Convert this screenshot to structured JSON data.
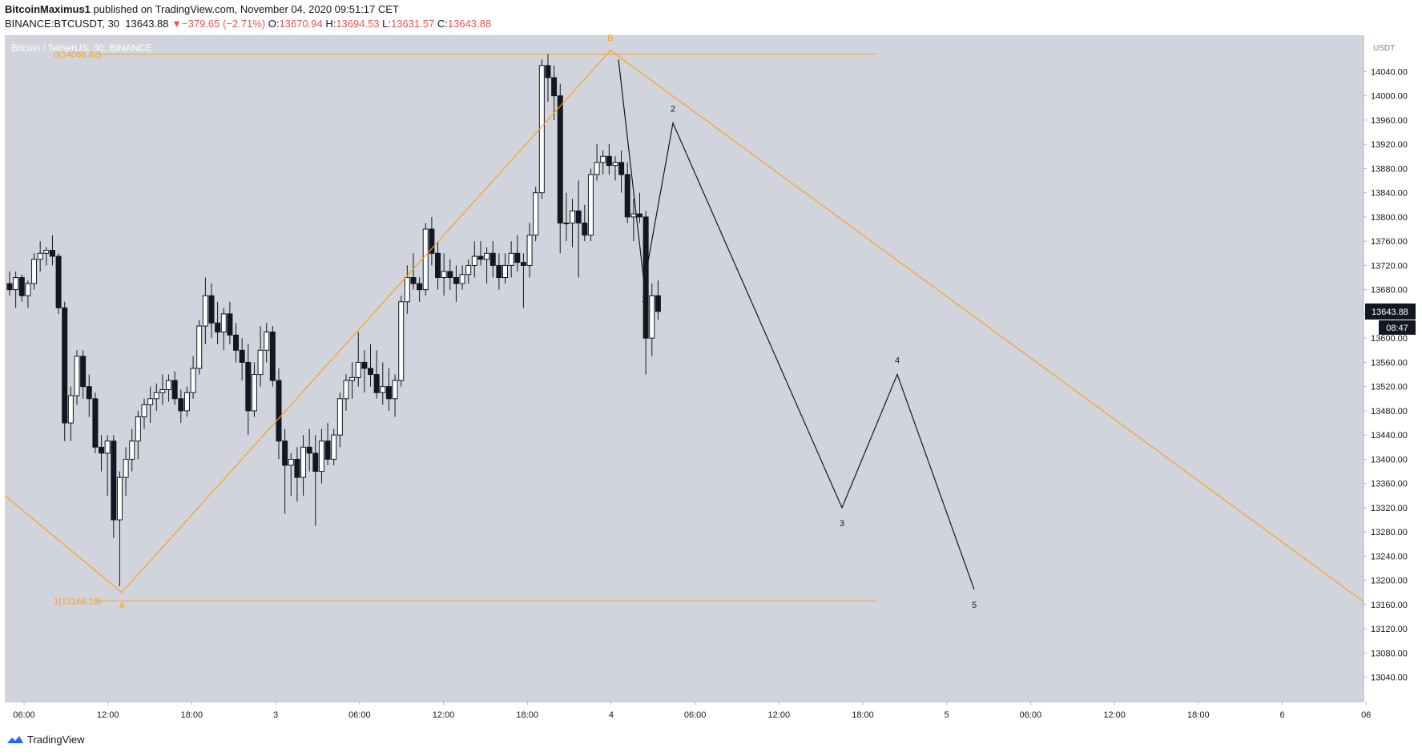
{
  "header": {
    "author": "BitcoinMaximus1",
    "published_text": "published on TradingView.com, November 04, 2020 09:51:17 CET",
    "symbol": "BINANCE:BTCUSDT, 30",
    "last": "13643.88",
    "change": "−379.65 (−2.71%)",
    "o_label": "O:",
    "o": "13670.94",
    "h_label": "H:",
    "h": "13694.53",
    "l_label": "L:",
    "l": "13631.57",
    "c_label": "C:",
    "c": "13643.88"
  },
  "chart_title": "Bitcoin / TetherUS, 30, BINANCE",
  "footer": {
    "brand": "TradingView"
  },
  "colors": {
    "plot_bg": "#d1d4dc",
    "orange": "#f7a21b",
    "down": "#131722",
    "up": "#ffffff",
    "price_tag_bg": "#131722"
  },
  "chart_data": {
    "type": "candlestick",
    "title": "Bitcoin / TetherUS, 30, BINANCE",
    "currency": "USDT",
    "ylim": [
      13000,
      14100
    ],
    "y_ticks": [
      13040,
      13080,
      13120,
      13160,
      13200,
      13240,
      13280,
      13320,
      13360,
      13400,
      13440,
      13480,
      13520,
      13560,
      13600,
      13640,
      13680,
      13720,
      13760,
      13800,
      13840,
      13880,
      13920,
      13960,
      14000,
      14040
    ],
    "x_ticks": [
      "06:00",
      "12:00",
      "18:00",
      "3",
      "06:00",
      "12:00",
      "18:00",
      "4",
      "06:00",
      "12:00",
      "18:00",
      "5",
      "06:00",
      "12:00",
      "18:00",
      "6",
      "06"
    ],
    "last_price": "13643.88",
    "countdown": "08:47",
    "fib_levels": [
      {
        "label": "0(14068.82)",
        "price": 14068.82
      },
      {
        "label": "1(13166.10)",
        "price": 13166.1
      }
    ],
    "abc_labels": {
      "a": "A",
      "b": "B"
    },
    "wave_labels": [
      "1",
      "2",
      "3",
      "4",
      "5"
    ],
    "wave_prices": [
      13690,
      13955,
      13320,
      13540,
      13185
    ],
    "candles": [
      [
        13690,
        13710,
        13670,
        13680
      ],
      [
        13680,
        13710,
        13650,
        13700
      ],
      [
        13700,
        13705,
        13660,
        13670
      ],
      [
        13670,
        13695,
        13650,
        13690
      ],
      [
        13690,
        13740,
        13680,
        13730
      ],
      [
        13730,
        13760,
        13710,
        13740
      ],
      [
        13740,
        13750,
        13720,
        13745
      ],
      [
        13745,
        13770,
        13720,
        13735
      ],
      [
        13735,
        13740,
        13640,
        13650
      ],
      [
        13650,
        13660,
        13430,
        13460
      ],
      [
        13460,
        13520,
        13430,
        13505
      ],
      [
        13505,
        13580,
        13490,
        13570
      ],
      [
        13570,
        13580,
        13500,
        13520
      ],
      [
        13520,
        13540,
        13470,
        13500
      ],
      [
        13500,
        13510,
        13410,
        13420
      ],
      [
        13420,
        13440,
        13380,
        13410
      ],
      [
        13410,
        13440,
        13340,
        13430
      ],
      [
        13430,
        13440,
        13270,
        13300
      ],
      [
        13300,
        13380,
        13190,
        13370
      ],
      [
        13370,
        13420,
        13340,
        13400
      ],
      [
        13400,
        13450,
        13380,
        13430
      ],
      [
        13430,
        13480,
        13400,
        13470
      ],
      [
        13470,
        13500,
        13450,
        13490
      ],
      [
        13490,
        13520,
        13460,
        13500
      ],
      [
        13500,
        13525,
        13480,
        13510
      ],
      [
        13510,
        13540,
        13490,
        13515
      ],
      [
        13515,
        13540,
        13495,
        13530
      ],
      [
        13530,
        13545,
        13490,
        13500
      ],
      [
        13500,
        13515,
        13460,
        13480
      ],
      [
        13480,
        13520,
        13470,
        13510
      ],
      [
        13510,
        13570,
        13500,
        13550
      ],
      [
        13550,
        13630,
        13540,
        13620
      ],
      [
        13620,
        13700,
        13590,
        13670
      ],
      [
        13670,
        13690,
        13600,
        13625
      ],
      [
        13625,
        13660,
        13590,
        13610
      ],
      [
        13610,
        13650,
        13580,
        13640
      ],
      [
        13640,
        13660,
        13590,
        13605
      ],
      [
        13605,
        13625,
        13560,
        13580
      ],
      [
        13580,
        13600,
        13530,
        13560
      ],
      [
        13560,
        13590,
        13440,
        13480
      ],
      [
        13480,
        13560,
        13470,
        13540
      ],
      [
        13540,
        13620,
        13520,
        13580
      ],
      [
        13580,
        13625,
        13560,
        13610
      ],
      [
        13610,
        13620,
        13520,
        13530
      ],
      [
        13530,
        13550,
        13400,
        13430
      ],
      [
        13430,
        13450,
        13310,
        13390
      ],
      [
        13390,
        13410,
        13340,
        13400
      ],
      [
        13400,
        13420,
        13330,
        13370
      ],
      [
        13370,
        13440,
        13340,
        13420
      ],
      [
        13420,
        13450,
        13380,
        13410
      ],
      [
        13410,
        13440,
        13290,
        13380
      ],
      [
        13380,
        13450,
        13360,
        13430
      ],
      [
        13430,
        13460,
        13390,
        13400
      ],
      [
        13400,
        13450,
        13390,
        13440
      ],
      [
        13440,
        13510,
        13420,
        13500
      ],
      [
        13500,
        13540,
        13480,
        13530
      ],
      [
        13530,
        13560,
        13500,
        13535
      ],
      [
        13535,
        13610,
        13520,
        13560
      ],
      [
        13560,
        13580,
        13510,
        13550
      ],
      [
        13550,
        13590,
        13520,
        13540
      ],
      [
        13540,
        13580,
        13500,
        13510
      ],
      [
        13510,
        13560,
        13490,
        13520
      ],
      [
        13520,
        13550,
        13480,
        13500
      ],
      [
        13500,
        13540,
        13470,
        13530
      ],
      [
        13530,
        13670,
        13520,
        13660
      ],
      [
        13660,
        13720,
        13640,
        13700
      ],
      [
        13700,
        13740,
        13680,
        13690
      ],
      [
        13690,
        13700,
        13660,
        13680
      ],
      [
        13680,
        13790,
        13670,
        13780
      ],
      [
        13780,
        13800,
        13720,
        13740
      ],
      [
        13740,
        13760,
        13680,
        13700
      ],
      [
        13700,
        13740,
        13670,
        13710
      ],
      [
        13710,
        13730,
        13680,
        13700
      ],
      [
        13700,
        13720,
        13660,
        13690
      ],
      [
        13690,
        13720,
        13680,
        13705
      ],
      [
        13705,
        13730,
        13690,
        13720
      ],
      [
        13720,
        13760,
        13700,
        13735
      ],
      [
        13735,
        13760,
        13720,
        13730
      ],
      [
        13730,
        13750,
        13690,
        13740
      ],
      [
        13740,
        13760,
        13700,
        13720
      ],
      [
        13720,
        13740,
        13680,
        13700
      ],
      [
        13700,
        13740,
        13690,
        13720
      ],
      [
        13720,
        13760,
        13700,
        13740
      ],
      [
        13740,
        13770,
        13710,
        13725
      ],
      [
        13725,
        13740,
        13650,
        13720
      ],
      [
        13720,
        13790,
        13700,
        13770
      ],
      [
        13770,
        13850,
        13760,
        13840
      ],
      [
        13840,
        14060,
        13830,
        14050
      ],
      [
        14050,
        14070,
        13990,
        14030
      ],
      [
        14030,
        14050,
        13960,
        14000
      ],
      [
        14000,
        14020,
        13740,
        13790
      ],
      [
        13790,
        13840,
        13760,
        13790
      ],
      [
        13790,
        13830,
        13750,
        13810
      ],
      [
        13810,
        13860,
        13700,
        13790
      ],
      [
        13790,
        13820,
        13760,
        13770
      ],
      [
        13770,
        13880,
        13760,
        13870
      ],
      [
        13870,
        13920,
        13860,
        13890
      ],
      [
        13890,
        13910,
        13870,
        13900
      ],
      [
        13900,
        13920,
        13870,
        13885
      ],
      [
        13885,
        13900,
        13860,
        13890
      ],
      [
        13890,
        13910,
        13840,
        13870
      ],
      [
        13870,
        13890,
        13790,
        13800
      ],
      [
        13800,
        13830,
        13760,
        13805
      ],
      [
        13805,
        13840,
        13790,
        13800
      ],
      [
        13800,
        13810,
        13540,
        13600
      ],
      [
        13600,
        13690,
        13570,
        13670
      ],
      [
        13670,
        13695,
        13630,
        13644
      ]
    ]
  }
}
